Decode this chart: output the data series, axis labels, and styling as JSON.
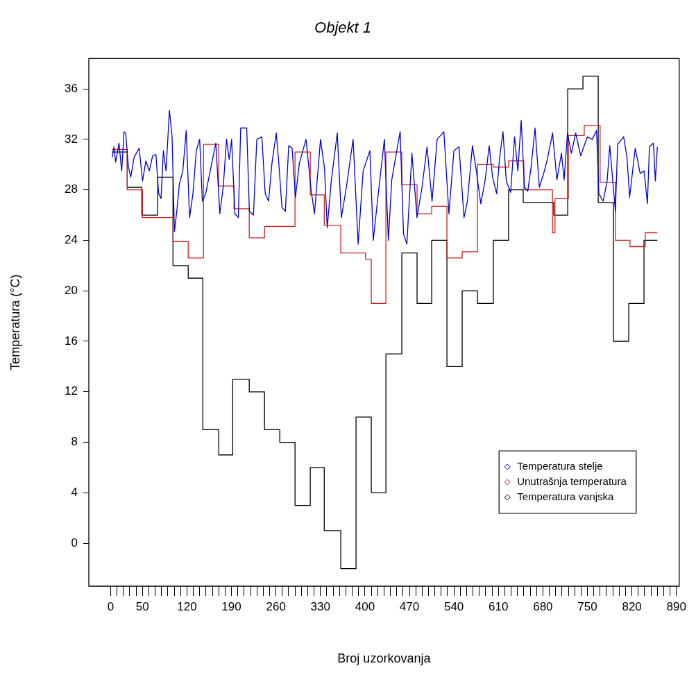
{
  "chart_data": {
    "type": "line",
    "title": "Objekt 1",
    "xlabel": "Broj uzorkovanja",
    "ylabel": "Temperatura (°C)",
    "legend": "bottom right",
    "marker": "none",
    "xlim": [
      -34.4,
      894.4
    ],
    "ylim": [
      -3.4,
      38.4
    ],
    "xticks": [
      0,
      {
        "value": 10,
        "label": null
      },
      {
        "value": 20,
        "label": null
      },
      {
        "value": 30,
        "label": null
      },
      {
        "value": 40,
        "label": null
      },
      50,
      {
        "value": 60,
        "label": null
      },
      {
        "value": 70,
        "label": null
      },
      {
        "value": 80,
        "label": null
      },
      {
        "value": 90,
        "label": null
      },
      {
        "value": 100,
        "label": null
      },
      {
        "value": 110,
        "label": null
      },
      120,
      {
        "value": 130,
        "label": null
      },
      {
        "value": 140,
        "label": null
      },
      {
        "value": 150,
        "label": null
      },
      {
        "value": 160,
        "label": null
      },
      {
        "value": 170,
        "label": null
      },
      {
        "value": 180,
        "label": null
      },
      190,
      {
        "value": 200,
        "label": null
      },
      {
        "value": 210,
        "label": null
      },
      {
        "value": 220,
        "label": null
      },
      {
        "value": 230,
        "label": null
      },
      {
        "value": 240,
        "label": null
      },
      {
        "value": 250,
        "label": null
      },
      260,
      {
        "value": 270,
        "label": null
      },
      {
        "value": 280,
        "label": null
      },
      {
        "value": 290,
        "label": null
      },
      {
        "value": 300,
        "label": null
      },
      {
        "value": 310,
        "label": null
      },
      {
        "value": 320,
        "label": null
      },
      330,
      {
        "value": 340,
        "label": null
      },
      {
        "value": 350,
        "label": null
      },
      {
        "value": 360,
        "label": null
      },
      {
        "value": 370,
        "label": null
      },
      {
        "value": 380,
        "label": null
      },
      {
        "value": 390,
        "label": null
      },
      400,
      {
        "value": 410,
        "label": null
      },
      {
        "value": 420,
        "label": null
      },
      {
        "value": 430,
        "label": null
      },
      {
        "value": 440,
        "label": null
      },
      {
        "value": 450,
        "label": null
      },
      {
        "value": 460,
        "label": null
      },
      470,
      {
        "value": 480,
        "label": null
      },
      {
        "value": 490,
        "label": null
      },
      {
        "value": 500,
        "label": null
      },
      {
        "value": 510,
        "label": null
      },
      {
        "value": 520,
        "label": null
      },
      {
        "value": 530,
        "label": null
      },
      540,
      {
        "value": 550,
        "label": null
      },
      {
        "value": 560,
        "label": null
      },
      {
        "value": 570,
        "label": null
      },
      {
        "value": 580,
        "label": null
      },
      {
        "value": 590,
        "label": null
      },
      {
        "value": 600,
        "label": null
      },
      610,
      {
        "value": 620,
        "label": null
      },
      {
        "value": 630,
        "label": null
      },
      {
        "value": 640,
        "label": null
      },
      {
        "value": 650,
        "label": null
      },
      {
        "value": 660,
        "label": null
      },
      {
        "value": 670,
        "label": null
      },
      680,
      {
        "value": 690,
        "label": null
      },
      {
        "value": 700,
        "label": null
      },
      {
        "value": 710,
        "label": null
      },
      {
        "value": 720,
        "label": null
      },
      {
        "value": 730,
        "label": null
      },
      {
        "value": 740,
        "label": null
      },
      750,
      {
        "value": 760,
        "label": null
      },
      {
        "value": 770,
        "label": null
      },
      {
        "value": 780,
        "label": null
      },
      {
        "value": 790,
        "label": null
      },
      {
        "value": 800,
        "label": null
      },
      {
        "value": 810,
        "label": null
      },
      820,
      {
        "value": 830,
        "label": null
      },
      {
        "value": 840,
        "label": null
      },
      {
        "value": 850,
        "label": null
      },
      {
        "value": 860,
        "label": null
      },
      {
        "value": 870,
        "label": null
      },
      {
        "value": 880,
        "label": null
      },
      890
    ],
    "yticks": [
      0,
      4,
      8,
      12,
      16,
      20,
      24,
      28,
      32,
      36
    ],
    "series": [
      {
        "name": "Temperatura stelje",
        "color": "#0000cc",
        "type": "line",
        "x": [
          2.5,
          5.1,
          7.8,
          13.1,
          17.3,
          21.0,
          23.6,
          27.9,
          31.6,
          36.9,
          44.8,
          50.1,
          55.4,
          60.7,
          66.0,
          71.2,
          75.5,
          79.2,
          82.9,
          87.1,
          92.4,
          96.6,
          100.3,
          104.0,
          108.2,
          113.5,
          118.8,
          124.1,
          129.4,
          134.7,
          140.0,
          144.2,
          149.5,
          155.8,
          165.4,
          171.7,
          177.0,
          182.3,
          186.5,
          190.2,
          195.5,
          200.8,
          204.5,
          214.0,
          218.2,
          224.6,
          229.9,
          237.8,
          243.1,
          248.4,
          253.7,
          260.5,
          264.2,
          269.5,
          274.8,
          280.1,
          285.4,
          290.7,
          296.8,
          307.3,
          315.3,
          320.6,
          330.1,
          336.4,
          340.7,
          347.0,
          356.5,
          362.9,
          370.8,
          381.4,
          389.3,
          397.2,
          407.8,
          413.1,
          421.0,
          430.6,
          436.9,
          442.2,
          450.1,
          455.4,
          460.7,
          466.0,
          473.9,
          481.9,
          489.8,
          497.7,
          505.6,
          513.6,
          524.2,
          532.1,
          540.0,
          548.0,
          555.9,
          561.2,
          569.1,
          574.4,
          582.3,
          589.2,
          595.5,
          600.8,
          607.2,
          612.0,
          617.2,
          622.4,
          629.2,
          635.4,
          640.6,
          645.8,
          651.0,
          656.2,
          661.4,
          667.6,
          674.4,
          681.2,
          686.4,
          695.2,
          702.0,
          709.2,
          713.4,
          718.6,
          724.8,
          731.6,
          739.4,
          749.8,
          757.6,
          764.4,
          768.0,
          774.8,
          781.0,
          785.2,
          794.0,
          797.6,
          807.0,
          812.2,
          816.4,
          825.2,
          833.0,
          839.2,
          844.4,
          847.6,
          853.8,
          856.9,
          860.0
        ],
        "values": [
          30.6,
          31.4,
          30.2,
          31.7,
          29.5,
          32.6,
          32.5,
          29.8,
          29.0,
          30.6,
          31.3,
          28.7,
          30.3,
          29.5,
          30.7,
          30.8,
          27.7,
          27.3,
          31.1,
          29.5,
          34.3,
          32.2,
          24.7,
          26.3,
          28.5,
          29.5,
          32.7,
          25.8,
          27.7,
          31.1,
          32.0,
          27.1,
          27.7,
          29.3,
          31.7,
          26.1,
          28.2,
          32.0,
          30.4,
          32.0,
          26.1,
          25.8,
          32.9,
          32.9,
          26.3,
          26.0,
          32.0,
          32.2,
          27.7,
          27.1,
          30.1,
          32.5,
          30.3,
          26.6,
          26.3,
          31.5,
          31.3,
          27.4,
          30.1,
          32.0,
          28.0,
          26.1,
          32.0,
          29.7,
          25.0,
          28.7,
          32.5,
          25.8,
          28.2,
          32.0,
          23.7,
          29.5,
          31.1,
          24.0,
          27.7,
          32.0,
          24.0,
          28.8,
          31.1,
          32.6,
          24.5,
          23.7,
          30.9,
          25.8,
          28.2,
          31.4,
          27.1,
          32.0,
          32.6,
          26.1,
          31.1,
          31.4,
          25.8,
          27.1,
          31.5,
          29.8,
          26.9,
          28.8,
          31.5,
          29.0,
          27.7,
          30.6,
          32.6,
          28.7,
          27.8,
          32.2,
          29.5,
          33.5,
          28.2,
          27.9,
          29.8,
          32.9,
          28.2,
          29.3,
          30.3,
          32.5,
          28.8,
          30.9,
          28.8,
          32.5,
          30.9,
          32.5,
          30.7,
          32.2,
          32.0,
          32.7,
          27.7,
          27.1,
          28.7,
          31.5,
          26.3,
          31.6,
          32.2,
          30.6,
          27.4,
          31.3,
          29.3,
          29.5,
          26.9,
          31.4,
          31.7,
          28.7,
          31.4
        ]
      },
      {
        "name": "Unutrašnja temperatura",
        "color": "#cc2222",
        "type": "step",
        "x": [
          2,
          26,
          50,
          98,
          122,
          146,
          170,
          194,
          218,
          242,
          290,
          314,
          336,
          362,
          401,
          410,
          433,
          458,
          482,
          505,
          529,
          553,
          577,
          602,
          626,
          650,
          695,
          699,
          720,
          745,
          770,
          794,
          817,
          841,
          860
        ],
        "values": [
          31.2,
          28,
          25.8,
          23.9,
          22.6,
          31.6,
          28.3,
          26.5,
          24.2,
          25.1,
          31,
          27.6,
          25.2,
          23,
          22.5,
          19,
          31,
          28.4,
          26.1,
          26.7,
          22.6,
          23.1,
          30,
          29.8,
          30.3,
          28,
          24.6,
          27.3,
          32.3,
          33.1,
          28.6,
          24,
          23.5,
          24.6,
          24.6
        ]
      },
      {
        "name": "Temperatura vanjska",
        "color": "#000000",
        "type": "step",
        "x": [
          2,
          26,
          49,
          74,
          98,
          122,
          145,
          170,
          192,
          218,
          242,
          266,
          290,
          314,
          336,
          362,
          386,
          410,
          433,
          458,
          482,
          505,
          529,
          553,
          577,
          602,
          626,
          649,
          697,
          719,
          743,
          767,
          791,
          815,
          839,
          860
        ],
        "values": [
          31,
          28.2,
          26,
          29,
          22,
          21,
          9,
          7,
          13,
          12,
          9,
          8,
          3,
          6,
          1,
          -2,
          10,
          4,
          15,
          23,
          19,
          24,
          14,
          20,
          19,
          24,
          28,
          27,
          26,
          36,
          37,
          27,
          16,
          19,
          24,
          24
        ]
      }
    ]
  }
}
